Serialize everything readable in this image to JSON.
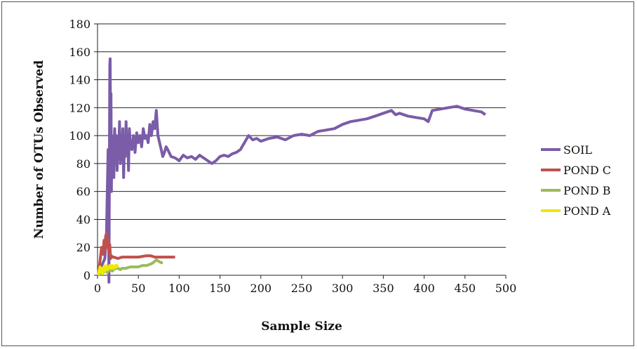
{
  "chart_data": {
    "type": "line",
    "title": "",
    "xlabel": "Sample Size",
    "ylabel": "Number of OTUs Observed",
    "xlim": [
      0,
      500
    ],
    "ylim": [
      0,
      180
    ],
    "xticks": [
      "0",
      "50",
      "100",
      "150",
      "200",
      "250",
      "300",
      "350",
      "400",
      "450",
      "500"
    ],
    "yticks": [
      "0",
      "20",
      "40",
      "60",
      "80",
      "100",
      "120",
      "140",
      "160",
      "180"
    ],
    "grid": "horizontal",
    "legend_position": "right",
    "legend": [
      "SOIL",
      "POND C",
      "POND B",
      "POND A"
    ],
    "series": [
      {
        "name": "SOIL",
        "color": "#7a5ca8",
        "x": [
          1,
          3,
          6,
          9,
          11,
          13,
          14,
          15,
          15.5,
          16,
          16.5,
          17,
          17.5,
          18,
          19,
          20,
          21,
          22,
          23,
          24,
          25,
          26,
          27,
          28,
          29,
          30,
          31,
          32,
          33,
          34,
          35,
          36,
          37,
          38,
          39,
          40,
          42,
          44,
          46,
          48,
          50,
          52,
          54,
          56,
          58,
          60,
          62,
          64,
          66,
          68,
          70,
          72,
          74,
          76,
          78,
          80,
          82,
          84,
          86,
          90,
          95,
          100,
          105,
          110,
          115,
          120,
          125,
          130,
          135,
          140,
          145,
          150,
          155,
          160,
          165,
          170,
          175,
          180,
          185,
          190,
          195,
          200,
          210,
          220,
          230,
          240,
          250,
          260,
          270,
          280,
          290,
          300,
          310,
          320,
          330,
          340,
          350,
          360,
          365,
          370,
          380,
          390,
          400,
          405,
          410,
          420,
          430,
          440,
          450,
          460,
          470,
          475
        ],
        "y": [
          2,
          5,
          8,
          12,
          30,
          90,
          -5,
          150,
          155,
          110,
          130,
          60,
          100,
          80,
          95,
          70,
          105,
          85,
          100,
          75,
          95,
          90,
          110,
          80,
          100,
          88,
          105,
          70,
          95,
          85,
          110,
          90,
          100,
          75,
          105,
          95,
          90,
          100,
          88,
          102,
          95,
          100,
          92,
          105,
          98,
          100,
          95,
          108,
          100,
          110,
          105,
          118,
          100,
          95,
          90,
          85,
          88,
          92,
          90,
          85,
          84,
          82,
          86,
          84,
          85,
          83,
          86,
          84,
          82,
          80,
          82,
          85,
          86,
          85,
          87,
          88,
          90,
          95,
          100,
          97,
          98,
          96,
          98,
          99,
          97,
          100,
          101,
          100,
          103,
          104,
          105,
          108,
          110,
          111,
          112,
          114,
          116,
          118,
          115,
          116,
          114,
          113,
          112,
          110,
          118,
          119,
          120,
          121,
          119,
          118,
          117,
          115
        ]
      },
      {
        "name": "POND C",
        "color": "#c0504d",
        "x": [
          1,
          3,
          5,
          7,
          8,
          9,
          10,
          11,
          12,
          13,
          14,
          15,
          16,
          17,
          18,
          20,
          25,
          30,
          40,
          50,
          60,
          65,
          70,
          80,
          90,
          95
        ],
        "y": [
          1,
          10,
          20,
          15,
          25,
          18,
          28,
          30,
          20,
          26,
          15,
          22,
          12,
          14,
          13,
          13,
          12,
          13,
          13,
          13,
          14,
          14,
          13,
          13,
          13,
          13
        ]
      },
      {
        "name": "POND B",
        "color": "#9bbb59",
        "x": [
          1,
          3,
          5,
          7,
          10,
          12,
          15,
          18,
          20,
          22,
          25,
          28,
          30,
          35,
          40,
          45,
          50,
          55,
          60,
          65,
          68,
          70,
          72,
          75,
          78,
          80
        ],
        "y": [
          0,
          1,
          2,
          2,
          3,
          2,
          4,
          3,
          4,
          5,
          5,
          4,
          5,
          5,
          6,
          6,
          6,
          7,
          7,
          8,
          9,
          10,
          11,
          10,
          9,
          9
        ]
      },
      {
        "name": "POND A",
        "color": "#f0e800",
        "x": [
          1,
          2,
          3,
          4,
          5,
          6,
          7,
          8,
          9,
          10,
          11,
          12,
          13,
          14,
          15,
          16,
          17,
          18,
          19,
          20,
          21,
          22,
          23,
          24,
          25
        ],
        "y": [
          0,
          3,
          6,
          2,
          5,
          1,
          4,
          6,
          3,
          7,
          5,
          4,
          6,
          5,
          7,
          6,
          5,
          7,
          6,
          5,
          6,
          7,
          6,
          7,
          6
        ]
      }
    ]
  }
}
